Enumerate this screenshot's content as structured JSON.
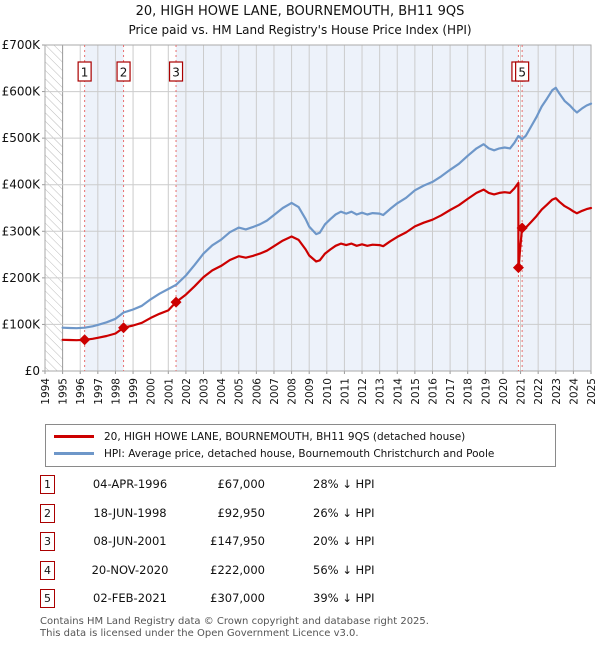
{
  "header": {
    "title": "20, HIGH HOWE LANE, BOURNEMOUTH, BH11 9QS",
    "subtitle": "Price paid vs. HM Land Registry's House Price Index (HPI)"
  },
  "chart_data": {
    "type": "line",
    "x_axis": {
      "min": 1994,
      "max": 2025,
      "ticks": [
        1994,
        1995,
        1996,
        1997,
        1998,
        1999,
        2000,
        2001,
        2002,
        2003,
        2004,
        2005,
        2006,
        2007,
        2008,
        2009,
        2010,
        2011,
        2012,
        2013,
        2014,
        2015,
        2016,
        2017,
        2018,
        2019,
        2020,
        2021,
        2022,
        2023,
        2024,
        2025
      ]
    },
    "y_axis": {
      "min": 0,
      "max": 700000,
      "ticks": [
        0,
        100000,
        200000,
        300000,
        400000,
        500000,
        600000,
        700000
      ],
      "tick_labels": [
        "£0",
        "£100K",
        "£200K",
        "£300K",
        "£400K",
        "£500K",
        "£600K",
        "£700K"
      ]
    },
    "grid": true,
    "hatch_before": 1995.0,
    "band_color": "#edf2fa",
    "ownership_bands": [
      [
        1996.25,
        1998.46
      ],
      [
        2001.44,
        2020.88
      ],
      [
        2021.09,
        2025
      ]
    ],
    "series": [
      {
        "id": "hpi",
        "label": "HPI: Average price, detached house, Bournemouth Christchurch and Poole",
        "color": "#6e97c9",
        "points": [
          [
            1995.0,
            93000
          ],
          [
            1995.4,
            92400
          ],
          [
            1995.8,
            91800
          ],
          [
            1996.25,
            93056
          ],
          [
            1996.7,
            96000
          ],
          [
            1997.0,
            99000
          ],
          [
            1997.5,
            104500
          ],
          [
            1998.0,
            112000
          ],
          [
            1998.46,
            125600
          ],
          [
            1999.0,
            132000
          ],
          [
            1999.5,
            140000
          ],
          [
            2000.0,
            154000
          ],
          [
            2000.5,
            166000
          ],
          [
            2001.0,
            176000
          ],
          [
            2001.44,
            184900
          ],
          [
            2002.0,
            205000
          ],
          [
            2002.5,
            228000
          ],
          [
            2003.0,
            252000
          ],
          [
            2003.5,
            270000
          ],
          [
            2004.0,
            282000
          ],
          [
            2004.5,
            298000
          ],
          [
            2005.0,
            308000
          ],
          [
            2005.4,
            304000
          ],
          [
            2005.8,
            309000
          ],
          [
            2006.2,
            315000
          ],
          [
            2006.6,
            323000
          ],
          [
            2007.0,
            335000
          ],
          [
            2007.5,
            350000
          ],
          [
            2008.0,
            361000
          ],
          [
            2008.4,
            352000
          ],
          [
            2008.8,
            326000
          ],
          [
            2009.0,
            310000
          ],
          [
            2009.4,
            294000
          ],
          [
            2009.6,
            297000
          ],
          [
            2009.9,
            315000
          ],
          [
            2010.2,
            326000
          ],
          [
            2010.5,
            336000
          ],
          [
            2010.8,
            342000
          ],
          [
            2011.1,
            338000
          ],
          [
            2011.4,
            342000
          ],
          [
            2011.7,
            336000
          ],
          [
            2012.0,
            340000
          ],
          [
            2012.3,
            336000
          ],
          [
            2012.6,
            339000
          ],
          [
            2013.0,
            338000
          ],
          [
            2013.2,
            335000
          ],
          [
            2013.6,
            348000
          ],
          [
            2014.0,
            360000
          ],
          [
            2014.5,
            372000
          ],
          [
            2015.0,
            388000
          ],
          [
            2015.5,
            398000
          ],
          [
            2016.0,
            406000
          ],
          [
            2016.5,
            418000
          ],
          [
            2017.0,
            432000
          ],
          [
            2017.5,
            445000
          ],
          [
            2018.0,
            462000
          ],
          [
            2018.5,
            478000
          ],
          [
            2018.9,
            487000
          ],
          [
            2019.2,
            478000
          ],
          [
            2019.5,
            474000
          ],
          [
            2019.8,
            478000
          ],
          [
            2020.1,
            480000
          ],
          [
            2020.4,
            478000
          ],
          [
            2020.65,
            490000
          ],
          [
            2020.88,
            504500
          ],
          [
            2021.09,
            498000
          ],
          [
            2021.3,
            505000
          ],
          [
            2021.6,
            525000
          ],
          [
            2021.9,
            545000
          ],
          [
            2022.2,
            568000
          ],
          [
            2022.5,
            585000
          ],
          [
            2022.8,
            603000
          ],
          [
            2023.0,
            608000
          ],
          [
            2023.2,
            596000
          ],
          [
            2023.5,
            580000
          ],
          [
            2023.8,
            570000
          ],
          [
            2024.0,
            562000
          ],
          [
            2024.2,
            555000
          ],
          [
            2024.5,
            564000
          ],
          [
            2024.75,
            570000
          ],
          [
            2025.0,
            574000
          ]
        ]
      },
      {
        "id": "price_paid",
        "label": "20, HIGH HOWE LANE, BOURNEMOUTH, BH11 9QS (detached house)",
        "color": "#cc0000",
        "points": [
          [
            1995.0,
            67000
          ],
          [
            1995.4,
            66500
          ],
          [
            1995.8,
            66100
          ],
          [
            1996.25,
            67000
          ],
          [
            1996.7,
            69100
          ],
          [
            1997.0,
            71300
          ],
          [
            1997.5,
            75200
          ],
          [
            1998.0,
            80600
          ],
          [
            1998.46,
            92950
          ],
          [
            1999.0,
            97700
          ],
          [
            1999.5,
            103600
          ],
          [
            2000.0,
            114000
          ],
          [
            2000.5,
            122800
          ],
          [
            2001.0,
            130200
          ],
          [
            2001.44,
            147950
          ],
          [
            2002.0,
            164000
          ],
          [
            2002.5,
            182000
          ],
          [
            2003.0,
            201600
          ],
          [
            2003.5,
            216000
          ],
          [
            2004.0,
            225600
          ],
          [
            2004.5,
            238400
          ],
          [
            2005.0,
            246400
          ],
          [
            2005.4,
            243200
          ],
          [
            2005.8,
            247200
          ],
          [
            2006.2,
            252000
          ],
          [
            2006.6,
            258400
          ],
          [
            2007.0,
            268000
          ],
          [
            2007.5,
            280000
          ],
          [
            2008.0,
            288800
          ],
          [
            2008.4,
            281600
          ],
          [
            2008.8,
            260800
          ],
          [
            2009.0,
            248000
          ],
          [
            2009.4,
            235200
          ],
          [
            2009.6,
            237600
          ],
          [
            2009.9,
            252000
          ],
          [
            2010.2,
            260800
          ],
          [
            2010.5,
            268800
          ],
          [
            2010.8,
            273600
          ],
          [
            2011.1,
            270400
          ],
          [
            2011.4,
            273600
          ],
          [
            2011.7,
            268800
          ],
          [
            2012.0,
            272000
          ],
          [
            2012.3,
            268800
          ],
          [
            2012.6,
            271200
          ],
          [
            2013.0,
            270400
          ],
          [
            2013.2,
            268000
          ],
          [
            2013.6,
            278400
          ],
          [
            2014.0,
            288000
          ],
          [
            2014.5,
            297600
          ],
          [
            2015.0,
            310400
          ],
          [
            2015.5,
            318400
          ],
          [
            2016.0,
            324800
          ],
          [
            2016.5,
            334400
          ],
          [
            2017.0,
            345600
          ],
          [
            2017.5,
            356000
          ],
          [
            2018.0,
            369600
          ],
          [
            2018.5,
            382400
          ],
          [
            2018.9,
            389600
          ],
          [
            2019.2,
            382400
          ],
          [
            2019.5,
            379200
          ],
          [
            2019.8,
            382400
          ],
          [
            2020.1,
            384000
          ],
          [
            2020.4,
            382400
          ],
          [
            2020.65,
            392000
          ],
          [
            2020.88,
            404000
          ],
          [
            2020.88,
            222000
          ],
          [
            2021.09,
            307000
          ],
          [
            2021.3,
            308000
          ],
          [
            2021.6,
            320000
          ],
          [
            2021.9,
            332500
          ],
          [
            2022.2,
            346500
          ],
          [
            2022.5,
            357000
          ],
          [
            2022.8,
            368000
          ],
          [
            2023.0,
            371000
          ],
          [
            2023.2,
            363500
          ],
          [
            2023.5,
            354000
          ],
          [
            2023.8,
            347700
          ],
          [
            2024.0,
            342800
          ],
          [
            2024.2,
            338600
          ],
          [
            2024.5,
            344000
          ],
          [
            2024.75,
            347700
          ],
          [
            2025.0,
            350000
          ]
        ]
      }
    ],
    "events": [
      {
        "label": "1",
        "x": 1996.25,
        "value": 67000
      },
      {
        "label": "2",
        "x": 1998.46,
        "value": 92950
      },
      {
        "label": "3",
        "x": 2001.44,
        "value": 147950
      },
      {
        "label": "4",
        "x": 2020.88,
        "value": 222000
      },
      {
        "label": "5",
        "x": 2021.09,
        "value": 307000
      }
    ],
    "event_line_color": "#e87070",
    "marker_color": "#cc0000"
  },
  "transactions": {
    "rows": [
      {
        "num": "1",
        "date": "04-APR-1996",
        "price": "£67,000",
        "delta": "28% ↓ HPI"
      },
      {
        "num": "2",
        "date": "18-JUN-1998",
        "price": "£92,950",
        "delta": "26% ↓ HPI"
      },
      {
        "num": "3",
        "date": "08-JUN-2001",
        "price": "£147,950",
        "delta": "20% ↓ HPI"
      },
      {
        "num": "4",
        "date": "20-NOV-2020",
        "price": "£222,000",
        "delta": "56% ↓ HPI"
      },
      {
        "num": "5",
        "date": "02-FEB-2021",
        "price": "£307,000",
        "delta": "39% ↓ HPI"
      }
    ]
  },
  "footer": {
    "line1": "Contains HM Land Registry data © Crown copyright and database right 2025.",
    "line2": "This data is licensed under the Open Government Licence v3.0."
  }
}
